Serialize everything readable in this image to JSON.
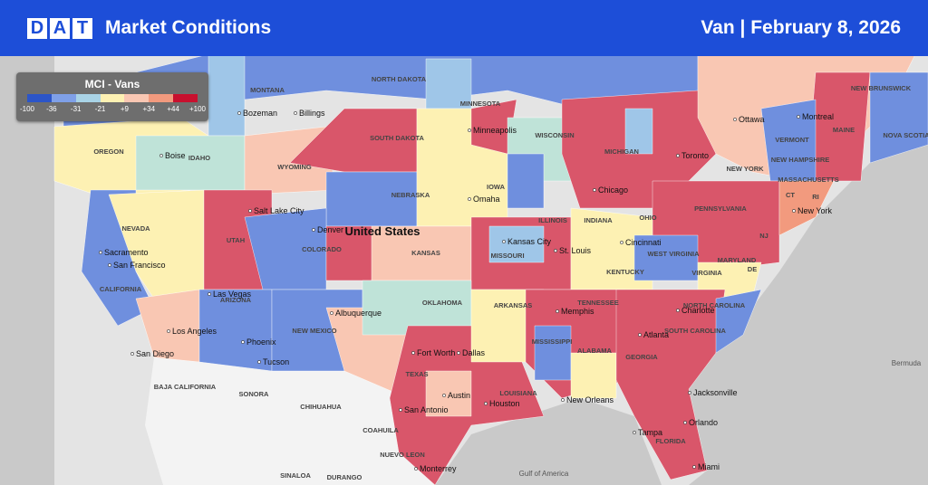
{
  "header": {
    "logo": [
      "D",
      "A",
      "T"
    ],
    "title": "Market Conditions",
    "equipment": "Van |",
    "date": "February 8, 2026"
  },
  "legend": {
    "title": "MCI - Vans",
    "labels": [
      "-100",
      "-36",
      "-31",
      "-21",
      "+9",
      "+34",
      "+44",
      "+100"
    ]
  },
  "map": {
    "country": "United States",
    "regions": [
      "MONTANA",
      "NORTH DAKOTA",
      "MINNESOTA",
      "SOUTH DAKOTA",
      "WISCONSIN",
      "MICHIGAN",
      "OREGON",
      "IDAHO",
      "WYOMING",
      "NEBRASKA",
      "IOWA",
      "ILLINOIS",
      "INDIANA",
      "OHIO",
      "PENNSYLVANIA",
      "NEVADA",
      "UTAH",
      "COLORADO",
      "KANSAS",
      "MISSOURI",
      "WEST VIRGINIA",
      "VIRGINIA",
      "KENTUCKY",
      "CALIFORNIA",
      "ARIZONA",
      "NEW MEXICO",
      "OKLAHOMA",
      "ARKANSAS",
      "TENNESSEE",
      "NORTH CAROLINA",
      "SOUTH CAROLINA",
      "MISSISSIPPI",
      "ALABAMA",
      "GEORGIA",
      "TEXAS",
      "LOUISIANA",
      "FLORIDA",
      "MARYLAND",
      "DE",
      "NJ",
      "CT",
      "RI",
      "MASSACHUSETTS",
      "NEW YORK",
      "VERMONT",
      "NEW HAMPSHIRE",
      "MAINE",
      "NEW BRUNSWICK",
      "NOVA SCOTIA",
      "SONORA",
      "CHIHUAHUA",
      "COAHUILA",
      "NUEVO LEON",
      "BAJA CALIFORNIA",
      "SINALOA",
      "DURANGO"
    ],
    "cities": [
      "Bozeman",
      "Billings",
      "Boise",
      "Minneapolis",
      "Ottawa",
      "Montreal",
      "Toronto",
      "Chicago",
      "Omaha",
      "Salt Lake City",
      "Denver",
      "Sacramento",
      "San Francisco",
      "Kansas City",
      "St. Louis",
      "Cincinnati",
      "New York",
      "Las Vegas",
      "Los Angeles",
      "San Diego",
      "Phoenix",
      "Tucson",
      "Albuquerque",
      "Memphis",
      "Charlotte",
      "Atlanta",
      "Fort Worth",
      "Dallas",
      "Austin",
      "Houston",
      "San Antonio",
      "New Orleans",
      "Jacksonville",
      "Orlando",
      "Tampa",
      "Miami",
      "Monterrey"
    ],
    "water": [
      "Gulf of America",
      "Bermuda"
    ]
  }
}
